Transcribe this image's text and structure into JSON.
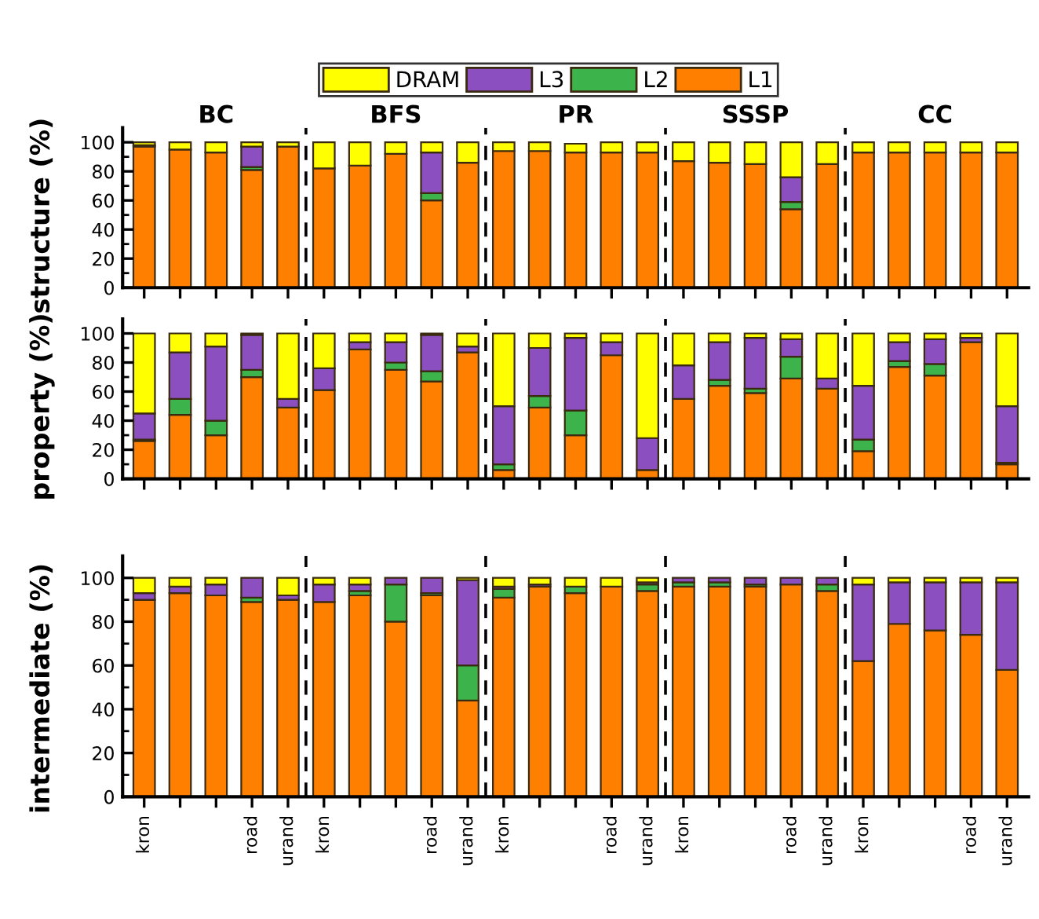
{
  "chart_data": [
    {
      "type": "bar",
      "stacked": true,
      "ylabel": "structure (%)",
      "ylim": [
        0,
        110
      ],
      "yticks": [
        0,
        20,
        40,
        60,
        80,
        100
      ],
      "tick_labels": "y",
      "legend": "top",
      "annotations": [
        "BC",
        "BFS",
        "PR",
        "SSSP",
        "CC"
      ],
      "categories": [
        null,
        null,
        null,
        null,
        null,
        null,
        null,
        null,
        null,
        null,
        null,
        null,
        null,
        null,
        null,
        null,
        null,
        null,
        null,
        null,
        null,
        null,
        null,
        null,
        null
      ],
      "series": [
        {
          "name": "L1",
          "color": "#ff8000",
          "values": [
            97,
            95,
            93,
            81,
            97,
            82,
            84,
            92,
            60,
            86,
            94,
            94,
            93,
            93,
            93,
            87,
            86,
            85,
            54,
            85,
            93,
            93,
            93,
            93,
            93
          ]
        },
        {
          "name": "L2",
          "color": "#3cb44b",
          "values": [
            0,
            0,
            0,
            2,
            0,
            0,
            0,
            0,
            5,
            0,
            0,
            0,
            null,
            0,
            0,
            0,
            0,
            0,
            5,
            0,
            0,
            0,
            0,
            0,
            0
          ]
        },
        {
          "name": "L3",
          "color": "#8b4fc0",
          "values": [
            1,
            0,
            0,
            14,
            0,
            0,
            0,
            0,
            28,
            0,
            0,
            0,
            0,
            0,
            0,
            0,
            0,
            0,
            17,
            0,
            0,
            0,
            0,
            0,
            0
          ]
        },
        {
          "name": "DRAM",
          "color": "#ffff00",
          "values": [
            2,
            5,
            7,
            3,
            3,
            18,
            16,
            8,
            7,
            14,
            6,
            6,
            6,
            7,
            7,
            13,
            14,
            15,
            24,
            15,
            7,
            7,
            7,
            7,
            7
          ]
        }
      ]
    },
    {
      "type": "bar",
      "stacked": true,
      "ylabel": "property (%)",
      "ylim": [
        0,
        110
      ],
      "yticks": [
        0,
        20,
        40,
        60,
        80,
        100
      ],
      "tick_labels": "y",
      "categories": [
        null,
        null,
        null,
        null,
        null,
        null,
        null,
        null,
        null,
        null,
        null,
        null,
        null,
        null,
        null,
        null,
        null,
        null,
        null,
        null,
        null,
        null,
        null,
        null,
        null
      ],
      "series": [
        {
          "color": "#ff8000",
          "values": [
            26,
            44,
            30,
            70,
            49,
            61,
            89,
            75,
            67,
            87,
            6,
            49,
            30,
            85,
            6,
            55,
            64,
            59,
            69,
            62,
            19,
            77,
            71,
            94,
            10
          ]
        },
        {
          "color": "#3cb44b",
          "values": [
            1,
            11,
            10,
            5,
            0,
            0,
            0,
            5,
            7,
            0,
            4,
            8,
            17,
            0,
            0,
            0,
            4,
            3,
            15,
            0,
            8,
            4,
            8,
            0,
            1
          ]
        },
        {
          "color": "#8b4fc0",
          "values": [
            18,
            32,
            51,
            24,
            6,
            15,
            5,
            14,
            25,
            4,
            40,
            33,
            50,
            9,
            22,
            23,
            26,
            35,
            12,
            7,
            37,
            13,
            17,
            3,
            39
          ]
        },
        {
          "color": "#ffff00",
          "values": [
            55,
            13,
            9,
            1,
            45,
            24,
            6,
            6,
            1,
            9,
            50,
            10,
            3,
            6,
            72,
            22,
            6,
            3,
            4,
            31,
            36,
            6,
            4,
            3,
            50
          ]
        }
      ]
    },
    {
      "type": "bar",
      "stacked": true,
      "ylabel": "intermediate (%)",
      "ylim": [
        0,
        110
      ],
      "yticks": [
        0,
        20,
        40,
        60,
        80,
        100
      ],
      "categories": [
        "kron",
        null,
        null,
        "road",
        "urand",
        "kron",
        null,
        null,
        "road",
        "urand",
        "kron",
        null,
        null,
        "road",
        "urand",
        "kron",
        null,
        null,
        "road",
        "urand",
        "kron",
        null,
        null,
        "road",
        "urand"
      ],
      "series": [
        {
          "color": "#ff8000",
          "values": [
            90,
            93,
            92,
            89,
            90,
            89,
            92,
            80,
            92,
            44,
            91,
            96,
            93,
            96,
            94,
            96,
            96,
            96,
            97,
            94,
            62,
            79,
            76,
            74,
            58
          ]
        },
        {
          "color": "#3cb44b",
          "values": [
            0,
            0,
            0,
            2,
            0,
            0,
            2,
            17,
            1,
            16,
            4,
            0,
            3,
            0,
            3,
            2,
            2,
            1,
            0,
            3,
            0,
            0,
            0,
            0,
            0
          ]
        },
        {
          "color": "#8b4fc0",
          "values": [
            3,
            3,
            5,
            9,
            2,
            8,
            3,
            3,
            7,
            39,
            1,
            1,
            0,
            0,
            1,
            2,
            2,
            3,
            3,
            3,
            35,
            19,
            22,
            24,
            40
          ]
        },
        {
          "color": "#ffff00",
          "values": [
            7,
            4,
            3,
            0,
            8,
            3,
            3,
            0,
            0,
            1,
            4,
            3,
            4,
            4,
            2,
            0,
            0,
            0,
            0,
            0,
            3,
            2,
            2,
            2,
            2
          ]
        }
      ]
    }
  ]
}
